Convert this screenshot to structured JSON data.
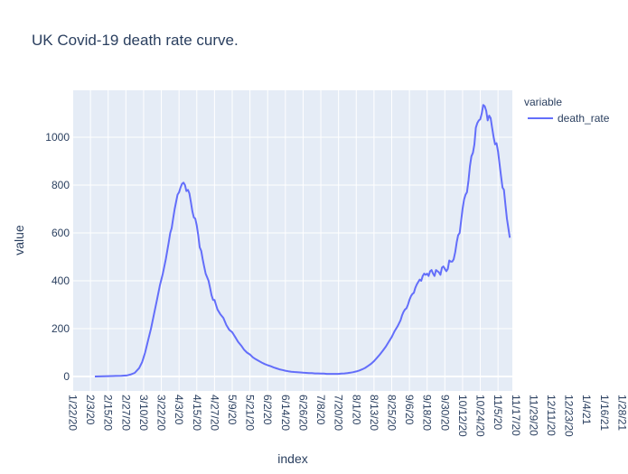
{
  "chart_data": {
    "type": "line",
    "title": "UK Covid-19 death rate curve.",
    "xlabel": "index",
    "ylabel": "value",
    "ylim": [
      -75,
      1190
    ],
    "grid": true,
    "legend_title": "variable",
    "legend_position": "top-right",
    "x_tick_labels": [
      "1/22/20",
      "2/3/20",
      "2/15/20",
      "2/27/20",
      "3/10/20",
      "3/22/20",
      "4/3/20",
      "4/15/20",
      "4/27/20",
      "5/9/20",
      "5/21/20",
      "6/2/20",
      "6/14/20",
      "6/26/20",
      "7/8/20",
      "7/20/20",
      "8/1/20",
      "8/13/20",
      "8/25/20",
      "9/6/20",
      "9/18/20",
      "9/30/20",
      "10/12/20",
      "10/24/20",
      "11/5/20",
      "11/17/20",
      "11/29/20",
      "12/11/20",
      "12/23/20",
      "1/4/21",
      "1/16/21",
      "1/28/21",
      "2/9/21",
      "2/21/21"
    ],
    "y_ticks": [
      0,
      200,
      400,
      600,
      800,
      1000
    ],
    "series": [
      {
        "name": "death_rate",
        "color": "#636efa",
        "points": [
          [
            15,
            0
          ],
          [
            21,
            1
          ],
          [
            27,
            2
          ],
          [
            33,
            3
          ],
          [
            37,
            5
          ],
          [
            39,
            8
          ],
          [
            42,
            15
          ],
          [
            45,
            35
          ],
          [
            47,
            60
          ],
          [
            49,
            100
          ],
          [
            51,
            150
          ],
          [
            53,
            200
          ],
          [
            55,
            260
          ],
          [
            57,
            320
          ],
          [
            59,
            380
          ],
          [
            61,
            430
          ],
          [
            63,
            490
          ],
          [
            65,
            560
          ],
          [
            66,
            600
          ],
          [
            67,
            620
          ],
          [
            68,
            660
          ],
          [
            69,
            700
          ],
          [
            70,
            730
          ],
          [
            71,
            760
          ],
          [
            72,
            770
          ],
          [
            73,
            790
          ],
          [
            74,
            805
          ],
          [
            75,
            810
          ],
          [
            76,
            800
          ],
          [
            77,
            775
          ],
          [
            78,
            780
          ],
          [
            79,
            765
          ],
          [
            80,
            730
          ],
          [
            81,
            690
          ],
          [
            82,
            665
          ],
          [
            83,
            660
          ],
          [
            84,
            630
          ],
          [
            85,
            590
          ],
          [
            86,
            540
          ],
          [
            87,
            525
          ],
          [
            88,
            490
          ],
          [
            89,
            460
          ],
          [
            90,
            430
          ],
          [
            91,
            415
          ],
          [
            92,
            400
          ],
          [
            93,
            370
          ],
          [
            94,
            340
          ],
          [
            95,
            320
          ],
          [
            96,
            320
          ],
          [
            97,
            300
          ],
          [
            98,
            280
          ],
          [
            100,
            260
          ],
          [
            102,
            245
          ],
          [
            104,
            215
          ],
          [
            106,
            195
          ],
          [
            108,
            185
          ],
          [
            110,
            165
          ],
          [
            112,
            145
          ],
          [
            114,
            130
          ],
          [
            116,
            112
          ],
          [
            118,
            100
          ],
          [
            120,
            92
          ],
          [
            122,
            80
          ],
          [
            124,
            72
          ],
          [
            126,
            65
          ],
          [
            128,
            58
          ],
          [
            130,
            52
          ],
          [
            132,
            47
          ],
          [
            134,
            43
          ],
          [
            136,
            38
          ],
          [
            138,
            34
          ],
          [
            140,
            30
          ],
          [
            142,
            27
          ],
          [
            144,
            24
          ],
          [
            146,
            22
          ],
          [
            148,
            20
          ],
          [
            150,
            19
          ],
          [
            152,
            18
          ],
          [
            154,
            17
          ],
          [
            156,
            16
          ],
          [
            158,
            15
          ],
          [
            160,
            14
          ],
          [
            162,
            14
          ],
          [
            164,
            13
          ],
          [
            166,
            13
          ],
          [
            168,
            12
          ],
          [
            170,
            12
          ],
          [
            172,
            11
          ],
          [
            174,
            11
          ],
          [
            176,
            11
          ],
          [
            178,
            11
          ],
          [
            180,
            11
          ],
          [
            182,
            12
          ],
          [
            184,
            13
          ],
          [
            186,
            14
          ],
          [
            188,
            16
          ],
          [
            190,
            18
          ],
          [
            192,
            21
          ],
          [
            194,
            25
          ],
          [
            196,
            30
          ],
          [
            198,
            36
          ],
          [
            200,
            44
          ],
          [
            202,
            53
          ],
          [
            204,
            64
          ],
          [
            206,
            78
          ],
          [
            208,
            92
          ],
          [
            210,
            108
          ],
          [
            212,
            125
          ],
          [
            214,
            145
          ],
          [
            216,
            165
          ],
          [
            218,
            190
          ],
          [
            220,
            210
          ],
          [
            222,
            235
          ],
          [
            223,
            255
          ],
          [
            224,
            270
          ],
          [
            225,
            280
          ],
          [
            226,
            285
          ],
          [
            227,
            300
          ],
          [
            228,
            320
          ],
          [
            229,
            335
          ],
          [
            230,
            345
          ],
          [
            231,
            350
          ],
          [
            232,
            370
          ],
          [
            233,
            385
          ],
          [
            234,
            395
          ],
          [
            235,
            405
          ],
          [
            236,
            400
          ],
          [
            237,
            420
          ],
          [
            238,
            430
          ],
          [
            239,
            425
          ],
          [
            240,
            430
          ],
          [
            241,
            420
          ],
          [
            242,
            440
          ],
          [
            243,
            445
          ],
          [
            244,
            430
          ],
          [
            245,
            420
          ],
          [
            246,
            445
          ],
          [
            247,
            440
          ],
          [
            248,
            435
          ],
          [
            249,
            425
          ],
          [
            250,
            455
          ],
          [
            251,
            460
          ],
          [
            252,
            450
          ],
          [
            253,
            440
          ],
          [
            254,
            450
          ],
          [
            255,
            485
          ],
          [
            256,
            480
          ],
          [
            257,
            480
          ],
          [
            258,
            490
          ],
          [
            259,
            520
          ],
          [
            260,
            560
          ],
          [
            261,
            590
          ],
          [
            262,
            600
          ],
          [
            263,
            650
          ],
          [
            264,
            700
          ],
          [
            265,
            740
          ],
          [
            266,
            760
          ],
          [
            267,
            770
          ],
          [
            268,
            820
          ],
          [
            269,
            880
          ],
          [
            270,
            920
          ],
          [
            271,
            935
          ],
          [
            272,
            970
          ],
          [
            273,
            1040
          ],
          [
            274,
            1060
          ],
          [
            275,
            1070
          ],
          [
            276,
            1075
          ],
          [
            277,
            1100
          ],
          [
            278,
            1135
          ],
          [
            279,
            1130
          ],
          [
            280,
            1110
          ],
          [
            281,
            1070
          ],
          [
            282,
            1090
          ],
          [
            283,
            1080
          ],
          [
            284,
            1040
          ],
          [
            285,
            1000
          ],
          [
            286,
            970
          ],
          [
            287,
            975
          ],
          [
            288,
            940
          ],
          [
            289,
            890
          ],
          [
            290,
            840
          ],
          [
            291,
            790
          ],
          [
            292,
            780
          ],
          [
            293,
            720
          ],
          [
            294,
            660
          ],
          [
            295,
            620
          ],
          [
            296,
            580
          ]
        ]
      }
    ]
  }
}
